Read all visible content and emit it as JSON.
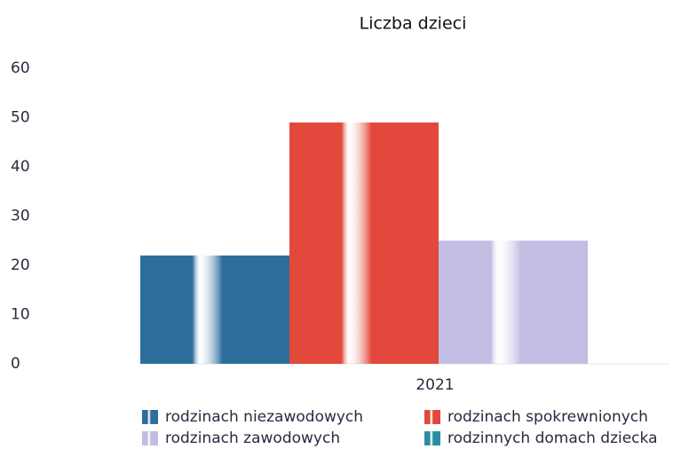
{
  "chart_data": {
    "type": "bar",
    "title": "Liczba dzieci",
    "categories": [
      "2021"
    ],
    "series": [
      {
        "name": "rodzinach niezawodowych",
        "color": "#2f6e9c",
        "values": [
          22
        ]
      },
      {
        "name": "rodzinach spokrewnionych",
        "color": "#e2483c",
        "values": [
          49
        ]
      },
      {
        "name": "rodzinach zawodowych",
        "color": "#c2bde2",
        "values": [
          25
        ]
      },
      {
        "name": "rodzinnych domach dziecka",
        "color": "#2a8ea2",
        "values": [
          0
        ]
      }
    ],
    "ylim": [
      0,
      60
    ],
    "yticks": [
      0,
      10,
      20,
      30,
      40,
      50,
      60
    ],
    "grid": false
  }
}
